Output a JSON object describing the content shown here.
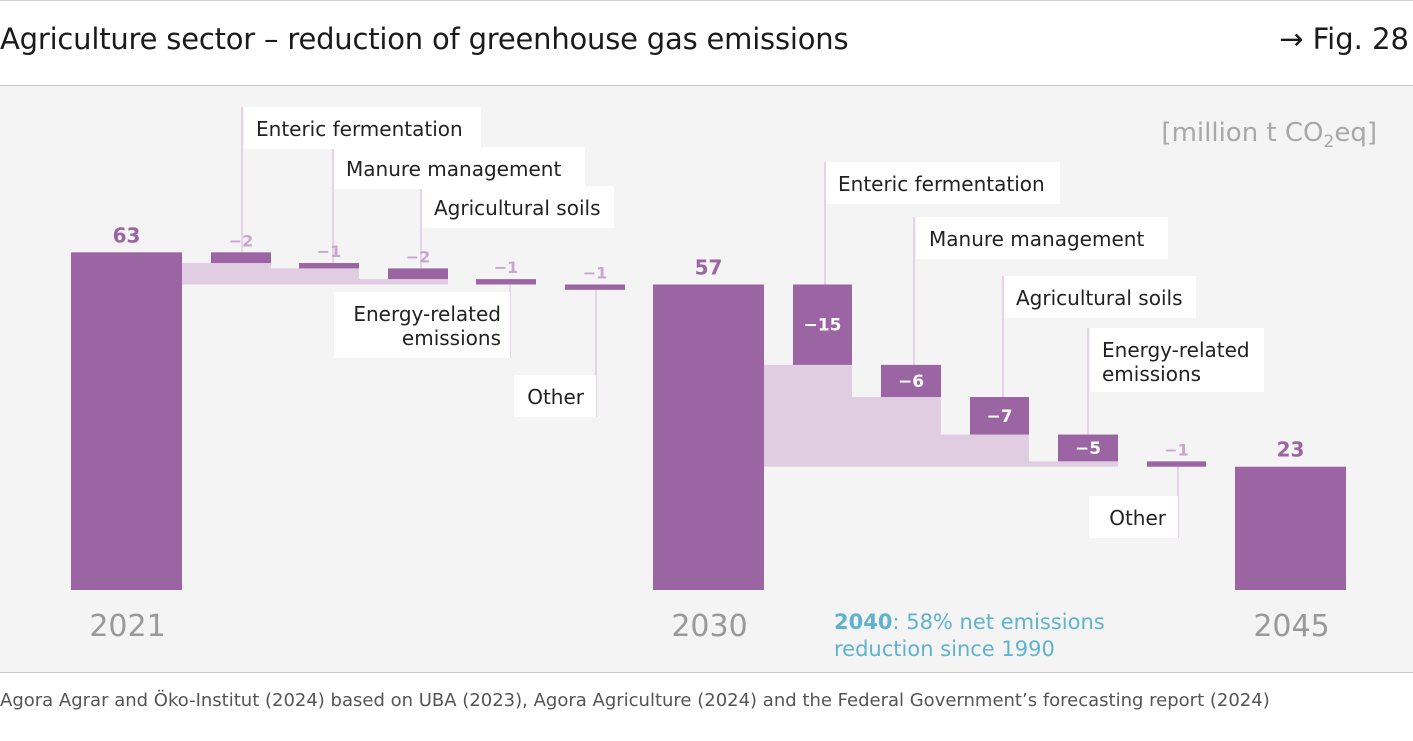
{
  "header": {
    "title": "Agriculture sector – reduction of greenhouse gas emissions",
    "fig_ref": "→ Fig. 28"
  },
  "footer": {
    "source": "Agora Agrar and Öko-Institut (2024) based on UBA (2023), Agora Agriculture (2024) and the Federal Government’s forecasting report (2024)"
  },
  "chart_data": {
    "type": "bar",
    "subtype": "waterfall",
    "title": "Agriculture sector – reduction of greenhouse gas emissions",
    "unit_label": {
      "main": "[million t CO",
      "sub": "2",
      "tail": "eq]"
    },
    "ylim": [
      0,
      63
    ],
    "totals": [
      {
        "year": "2021",
        "value": 63,
        "label": "63"
      },
      {
        "year": "2030",
        "value": 57,
        "label": "57"
      },
      {
        "year": "2045",
        "value": 23,
        "label": "23"
      }
    ],
    "steps_2021_2030": [
      {
        "category": "Enteric fermentation",
        "value": -2,
        "label": "−2"
      },
      {
        "category": "Manure management",
        "value": -1,
        "label": "−1"
      },
      {
        "category": "Agricultural soils",
        "value": -2,
        "label": "−2"
      },
      {
        "category": "Energy-related emissions",
        "value": -1,
        "label": "−1"
      },
      {
        "category": "Other",
        "value": -1,
        "label": "−1"
      }
    ],
    "steps_2030_2045": [
      {
        "category": "Enteric fermentation",
        "value": -15,
        "label": "−15"
      },
      {
        "category": "Manure management",
        "value": -6,
        "label": "−6"
      },
      {
        "category": "Agricultural soils",
        "value": -7,
        "label": "−7"
      },
      {
        "category": "Energy-related emissions",
        "value": -5,
        "label": "−5"
      },
      {
        "category": "Other",
        "value": -1,
        "label": "−1"
      }
    ],
    "energy_label_lines": [
      "Energy-related",
      "emissions"
    ],
    "annotation": {
      "year": "2040",
      "text_line1": ": 58% net emissions",
      "text_line2": "reduction since 1990"
    },
    "colors": {
      "bar": "#9b65a3",
      "band": "#e0cde2",
      "small_label": "#c9a6cf",
      "label_line": "#e6d3e8",
      "annotation": "#5fb3d0",
      "year": "#999999"
    }
  }
}
